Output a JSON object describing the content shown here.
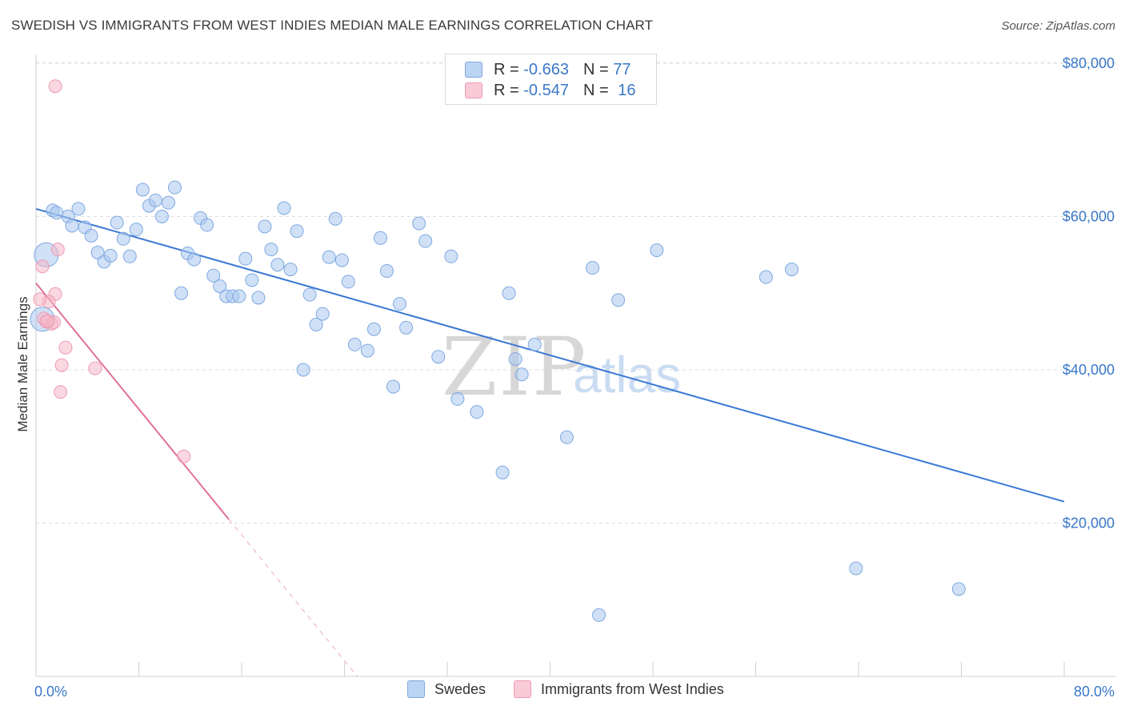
{
  "header": {
    "title": "SWEDISH VS IMMIGRANTS FROM WEST INDIES MEDIAN MALE EARNINGS CORRELATION CHART",
    "source": "Source: ZipAtlas.com"
  },
  "legend": {
    "rows": [
      {
        "r_label": "R = ",
        "r_value": "-0.663",
        "n_label": "N = ",
        "n_value": "77",
        "color": "#a9c8f0"
      },
      {
        "r_label": "R = ",
        "r_value": "-0.547",
        "n_label": "N = ",
        "n_value": "16",
        "color": "#f5b8c9"
      }
    ]
  },
  "bottom_legend": {
    "items": [
      {
        "label": "Swedes",
        "color": "#a9c8f0"
      },
      {
        "label": "Immigrants from West Indies",
        "color": "#f5b8c9"
      }
    ]
  },
  "watermark": {
    "zip": "ZIP",
    "atlas": "atlas"
  },
  "chart_data": {
    "type": "scatter",
    "title": "SWEDISH VS IMMIGRANTS FROM WEST INDIES MEDIAN MALE EARNINGS CORRELATION CHART",
    "xlabel": "",
    "ylabel": "Median Male Earnings",
    "xlim": [
      0,
      80
    ],
    "ylim": [
      0,
      81000
    ],
    "x_tick_labels": [
      "0.0%",
      "80.0%"
    ],
    "y_ticks": [
      20000,
      40000,
      60000,
      80000
    ],
    "y_tick_labels": [
      "$20,000",
      "$40,000",
      "$60,000",
      "$80,000"
    ],
    "grid": "horizontal dashed",
    "colors": {
      "swedes": "#3a78d4",
      "swedes_fill": "#a9c8f0",
      "westindies": "#e0709a",
      "westindies_fill": "#f5b8c9"
    },
    "series": [
      {
        "name": "Swedes",
        "trend": {
          "x": [
            0,
            80
          ],
          "y": [
            61000,
            22800
          ]
        },
        "points": [
          [
            1.3,
            60800
          ],
          [
            1.6,
            60500
          ],
          [
            2.5,
            60000
          ],
          [
            3.3,
            61000
          ],
          [
            2.8,
            58800
          ],
          [
            3.8,
            58600
          ],
          [
            4.3,
            57500
          ],
          [
            4.8,
            55300
          ],
          [
            5.3,
            54100
          ],
          [
            5.8,
            54900
          ],
          [
            6.3,
            59200
          ],
          [
            6.8,
            57100
          ],
          [
            7.3,
            54800
          ],
          [
            7.8,
            58300
          ],
          [
            8.3,
            63500
          ],
          [
            8.8,
            61400
          ],
          [
            9.3,
            62100
          ],
          [
            9.8,
            60000
          ],
          [
            10.3,
            61800
          ],
          [
            10.8,
            63800
          ],
          [
            11.3,
            50000
          ],
          [
            11.8,
            55200
          ],
          [
            12.3,
            54400
          ],
          [
            12.8,
            59800
          ],
          [
            13.3,
            58900
          ],
          [
            13.8,
            52300
          ],
          [
            14.3,
            50900
          ],
          [
            14.8,
            49600
          ],
          [
            15.3,
            49600
          ],
          [
            15.8,
            49600
          ],
          [
            16.3,
            54500
          ],
          [
            16.8,
            51700
          ],
          [
            17.3,
            49400
          ],
          [
            17.8,
            58700
          ],
          [
            18.3,
            55700
          ],
          [
            18.8,
            53700
          ],
          [
            19.3,
            61100
          ],
          [
            19.8,
            53100
          ],
          [
            20.3,
            58100
          ],
          [
            20.8,
            40000
          ],
          [
            21.3,
            49800
          ],
          [
            21.8,
            45900
          ],
          [
            22.3,
            47300
          ],
          [
            22.8,
            54700
          ],
          [
            23.3,
            59700
          ],
          [
            23.8,
            54300
          ],
          [
            24.3,
            51500
          ],
          [
            24.8,
            43300
          ],
          [
            25.8,
            42500
          ],
          [
            26.3,
            45300
          ],
          [
            26.8,
            57200
          ],
          [
            27.3,
            52900
          ],
          [
            27.8,
            37800
          ],
          [
            28.3,
            48600
          ],
          [
            28.8,
            45500
          ],
          [
            29.8,
            59100
          ],
          [
            30.3,
            56800
          ],
          [
            31.3,
            41700
          ],
          [
            32.3,
            54800
          ],
          [
            32.8,
            36200
          ],
          [
            34.3,
            34500
          ],
          [
            36.3,
            26600
          ],
          [
            36.8,
            50000
          ],
          [
            37.3,
            41400
          ],
          [
            37.8,
            39400
          ],
          [
            38.8,
            43300
          ],
          [
            41.3,
            31200
          ],
          [
            43.3,
            53300
          ],
          [
            43.8,
            8000
          ],
          [
            45.3,
            49100
          ],
          [
            48.3,
            55600
          ],
          [
            56.8,
            52100
          ],
          [
            58.8,
            53100
          ],
          [
            63.8,
            14100
          ],
          [
            71.8,
            11400
          ],
          [
            0.8,
            55000
          ],
          [
            0.5,
            46600
          ]
        ]
      },
      {
        "name": "Immigrants from West Indies",
        "trend": {
          "x": [
            0,
            15
          ],
          "y": [
            51300,
            20500
          ]
        },
        "trend_dashed_ext": {
          "x": [
            15,
            25
          ],
          "y": [
            20500,
            0
          ]
        },
        "points": [
          [
            1.5,
            77000
          ],
          [
            1.7,
            55700
          ],
          [
            0.5,
            53500
          ],
          [
            1.5,
            49900
          ],
          [
            1.0,
            48900
          ],
          [
            0.3,
            49200
          ],
          [
            0.8,
            46300
          ],
          [
            1.2,
            46000
          ],
          [
            1.4,
            46200
          ],
          [
            0.6,
            46700
          ],
          [
            0.9,
            46400
          ],
          [
            2.3,
            42900
          ],
          [
            2.0,
            40600
          ],
          [
            4.6,
            40200
          ],
          [
            1.9,
            37100
          ],
          [
            11.5,
            28700
          ]
        ]
      }
    ]
  }
}
